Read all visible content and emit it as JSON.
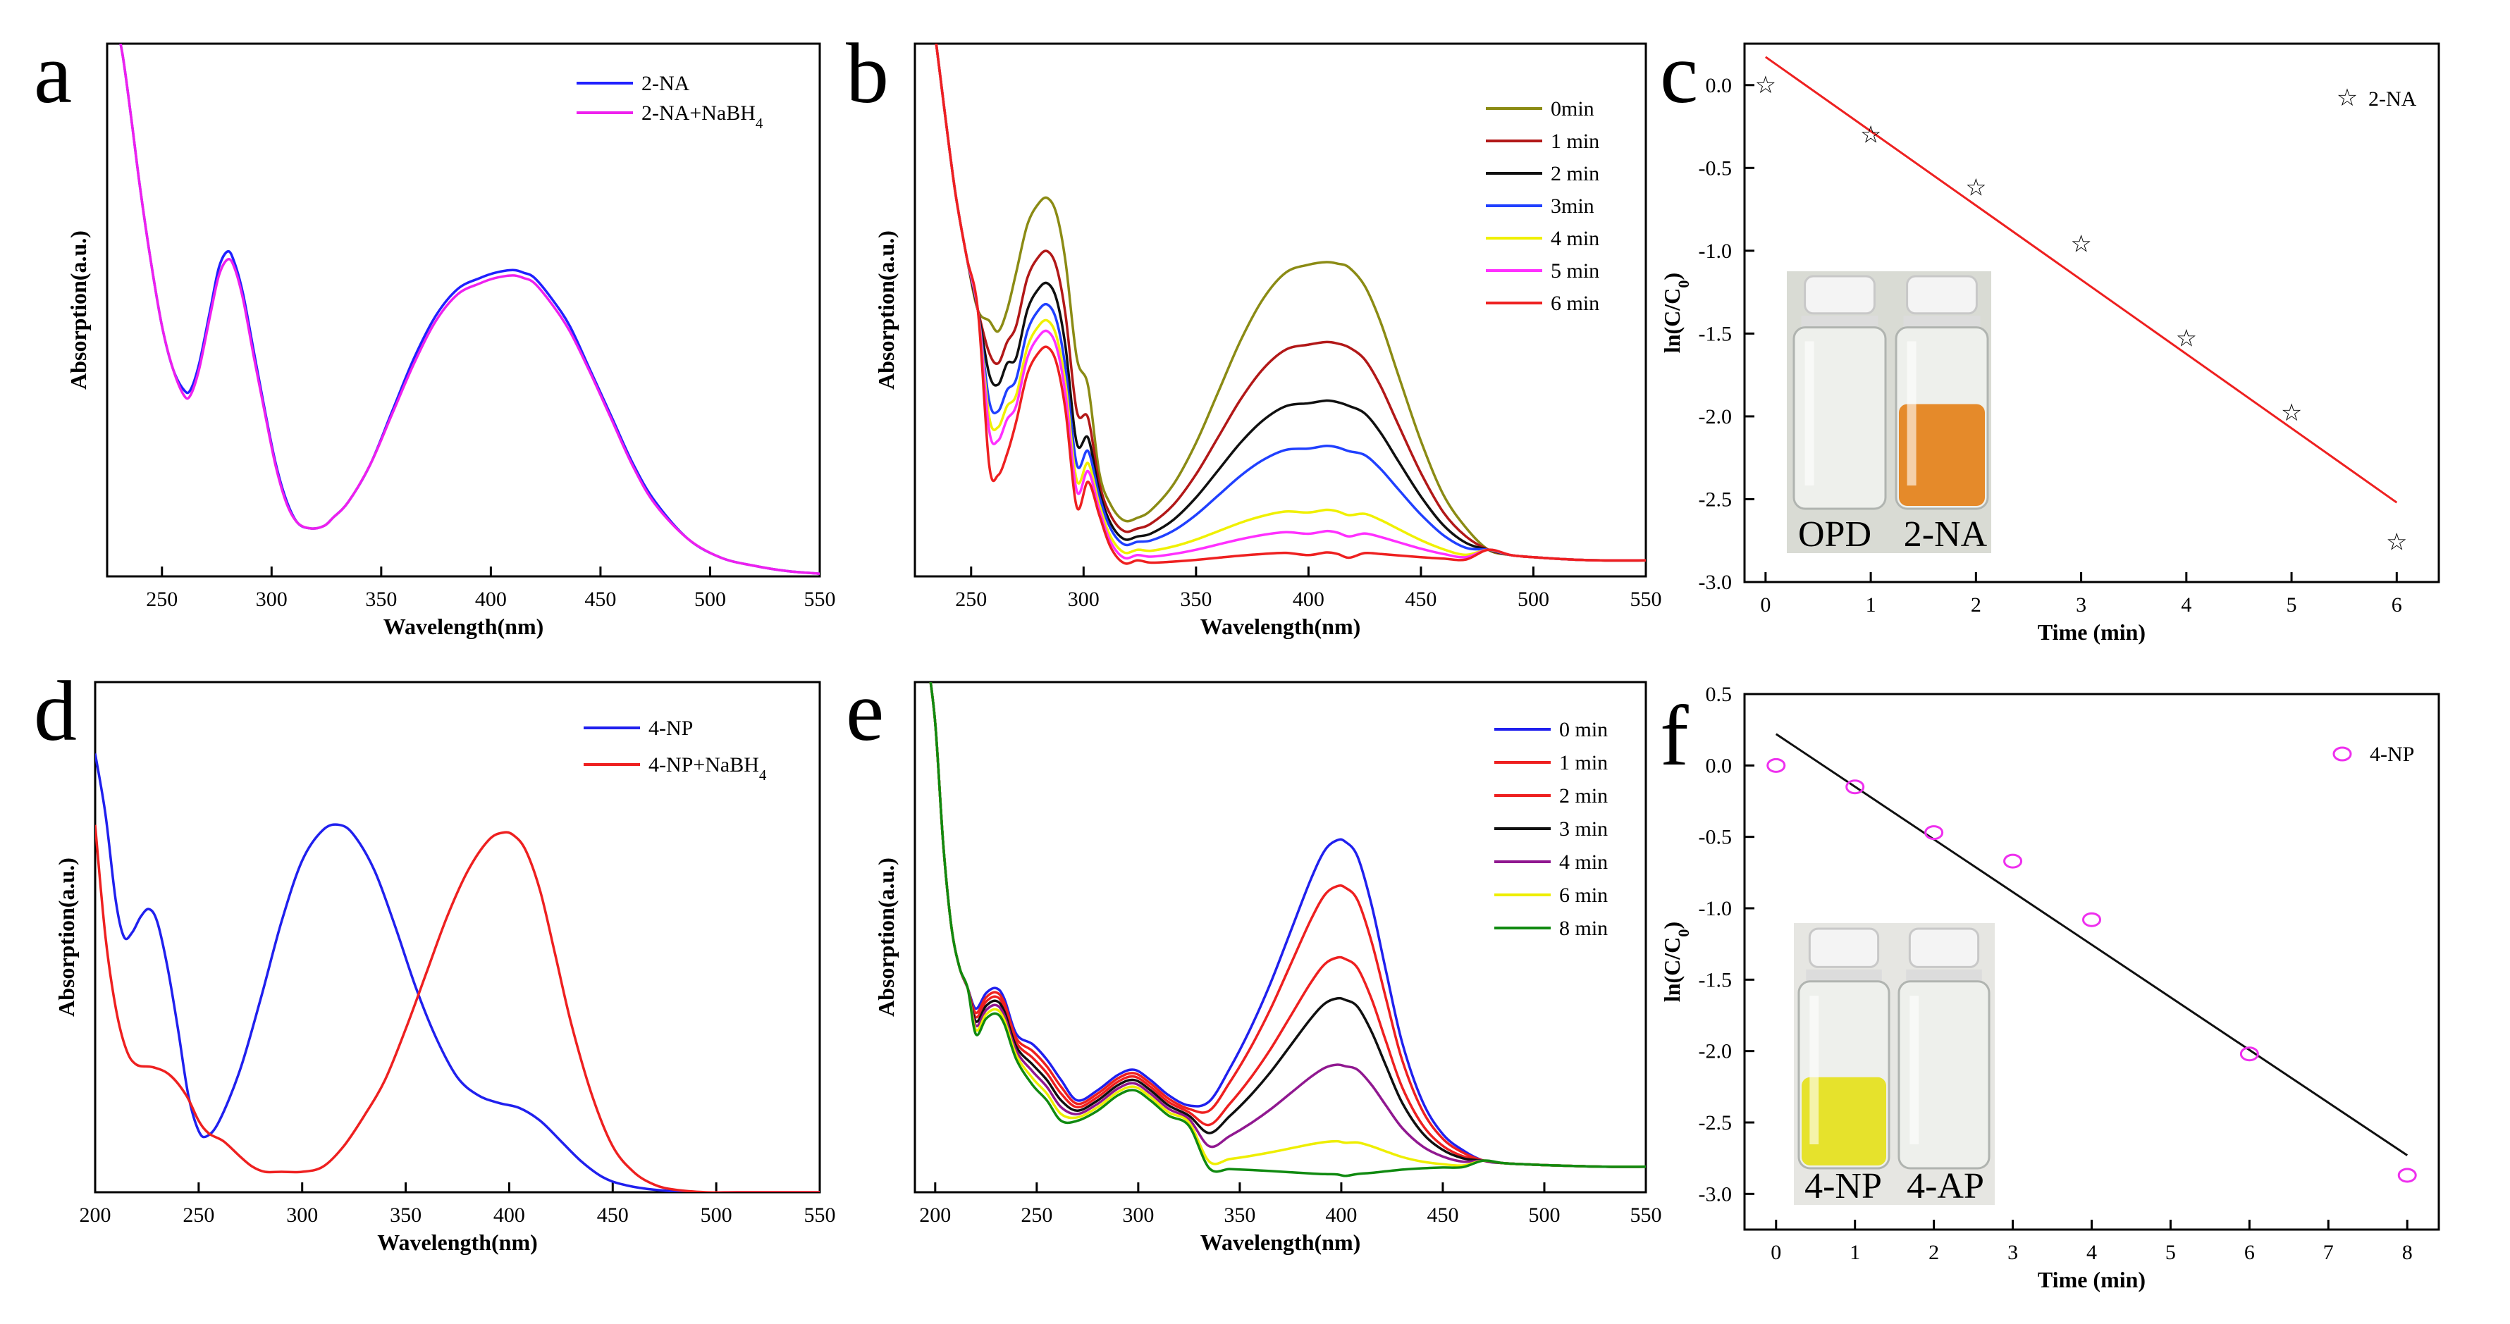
{
  "figure": {
    "panels_order": [
      "a",
      "b",
      "c",
      "d",
      "e",
      "f"
    ]
  },
  "chart_data": [
    {
      "panel": "a",
      "type": "line",
      "xlabel": "Wavelength(nm)",
      "ylabel": "Absorption(a.u.)",
      "xlim": [
        225,
        550
      ],
      "ylim": [
        0,
        1.0
      ],
      "xticks": [
        250,
        300,
        350,
        400,
        450,
        500,
        550
      ],
      "legend_position": "top-right",
      "series": [
        {
          "name": "2-NA",
          "color": "#2020ff",
          "x": [
            228,
            232,
            236,
            240,
            245,
            250,
            255,
            260,
            263,
            267,
            272,
            276,
            280,
            283,
            287,
            292,
            297,
            302,
            307,
            312,
            318,
            324,
            328,
            335,
            345,
            355,
            365,
            375,
            385,
            395,
            402,
            410,
            415,
            420,
            428,
            436,
            445,
            455,
            465,
            475,
            490,
            505,
            520,
            535,
            550
          ],
          "y": [
            1.06,
            0.98,
            0.86,
            0.73,
            0.59,
            0.47,
            0.39,
            0.35,
            0.35,
            0.4,
            0.5,
            0.58,
            0.61,
            0.59,
            0.53,
            0.42,
            0.31,
            0.21,
            0.14,
            0.1,
            0.09,
            0.095,
            0.11,
            0.14,
            0.21,
            0.31,
            0.41,
            0.49,
            0.54,
            0.56,
            0.57,
            0.575,
            0.57,
            0.56,
            0.52,
            0.47,
            0.39,
            0.3,
            0.21,
            0.14,
            0.07,
            0.035,
            0.02,
            0.01,
            0.005
          ]
        },
        {
          "name": "2-NA+NaBH4",
          "color": "#ee20ee",
          "x": [
            228,
            232,
            236,
            240,
            245,
            250,
            255,
            260,
            263,
            267,
            272,
            276,
            280,
            283,
            287,
            292,
            297,
            302,
            307,
            312,
            318,
            324,
            328,
            335,
            345,
            355,
            365,
            375,
            385,
            395,
            402,
            410,
            415,
            420,
            428,
            436,
            445,
            455,
            465,
            475,
            490,
            505,
            520,
            535,
            550
          ],
          "y": [
            1.06,
            0.98,
            0.86,
            0.73,
            0.59,
            0.47,
            0.39,
            0.34,
            0.34,
            0.39,
            0.49,
            0.565,
            0.595,
            0.58,
            0.52,
            0.41,
            0.305,
            0.205,
            0.135,
            0.1,
            0.09,
            0.095,
            0.11,
            0.14,
            0.21,
            0.305,
            0.4,
            0.48,
            0.53,
            0.55,
            0.56,
            0.565,
            0.56,
            0.55,
            0.51,
            0.46,
            0.385,
            0.295,
            0.205,
            0.135,
            0.07,
            0.035,
            0.02,
            0.01,
            0.005
          ]
        }
      ]
    },
    {
      "panel": "b",
      "type": "line",
      "xlabel": "Wavelength(nm)",
      "ylabel": "Absorption(a.u.)",
      "xlim": [
        225,
        550
      ],
      "ylim": [
        0,
        1.0
      ],
      "xticks": [
        250,
        300,
        350,
        400,
        450,
        500,
        550
      ],
      "legend_position": "top-right",
      "series": [
        {
          "name": "0min",
          "color": "#8b8b14",
          "peak1": 0.71,
          "valley1": 0.46,
          "valley2": 0.105,
          "peak2": 0.59
        },
        {
          "name": "1 min",
          "color": "#b21818",
          "peak1": 0.61,
          "valley1": 0.4,
          "valley2": 0.085,
          "peak2": 0.44
        },
        {
          "name": "2 min",
          "color": "#101010",
          "peak1": 0.55,
          "valley1": 0.36,
          "valley2": 0.07,
          "peak2": 0.33
        },
        {
          "name": "3min",
          "color": "#2040ff",
          "peak1": 0.51,
          "valley1": 0.31,
          "valley2": 0.06,
          "peak2": 0.245
        },
        {
          "name": "4 min",
          "color": "#f0f000",
          "peak1": 0.48,
          "valley1": 0.28,
          "valley2": 0.045,
          "peak2": 0.125
        },
        {
          "name": "5 min",
          "color": "#ff30ff",
          "peak1": 0.46,
          "valley1": 0.255,
          "valley2": 0.035,
          "peak2": 0.085
        },
        {
          "name": "6 min",
          "color": "#ee2020",
          "peak1": 0.43,
          "valley1": 0.19,
          "valley2": 0.025,
          "peak2": 0.045
        }
      ]
    },
    {
      "panel": "c",
      "type": "scatter",
      "xlabel": "Time (min)",
      "ylabel": "ln(C/C",
      "ylabel_sub": "0",
      "ylabel_tail": ")",
      "xlim": [
        -0.2,
        6.4
      ],
      "ylim": [
        -3.0,
        0.25
      ],
      "xticks": [
        0,
        1,
        2,
        3,
        4,
        5,
        6
      ],
      "yticks": [
        0.0,
        -0.5,
        -1.0,
        -1.5,
        -2.0,
        -2.5,
        -3.0
      ],
      "ytick_labels": [
        "0.0",
        "-0.5",
        "-1.0",
        "-1.5",
        "-2.0",
        "-2.5",
        "-3.0"
      ],
      "marker_color": "#8a2f8a",
      "line_color": "#ee2020",
      "fit": {
        "x0": 0,
        "y0": 0.17,
        "x1": 6,
        "y1": -2.52
      },
      "series": [
        {
          "name": "2-NA",
          "x": [
            0,
            1,
            2,
            3,
            4,
            5,
            6
          ],
          "y": [
            0.0,
            -0.3,
            -0.62,
            -0.96,
            -1.53,
            -1.98,
            -2.76
          ]
        }
      ],
      "legend_position": "top-right",
      "inset_labels": [
        "OPD",
        "2-NA"
      ]
    },
    {
      "panel": "d",
      "type": "line",
      "xlabel": "Wavelength(nm)",
      "ylabel": "Absorption(a.u.)",
      "xlim": [
        200,
        550
      ],
      "ylim": [
        0,
        1.0
      ],
      "xticks": [
        200,
        250,
        300,
        350,
        400,
        450,
        500,
        550
      ],
      "legend_position": "top-right",
      "series": [
        {
          "name": "4-NP",
          "color": "#2020ee",
          "x": [
            200,
            205,
            210,
            214,
            218,
            222,
            226,
            230,
            235,
            240,
            245,
            250,
            254,
            260,
            270,
            280,
            290,
            300,
            310,
            318,
            325,
            335,
            345,
            355,
            365,
            375,
            385,
            395,
            405,
            415,
            425,
            435,
            445,
            455,
            470,
            490,
            510,
            530,
            550
          ],
          "y": [
            0.86,
            0.74,
            0.57,
            0.5,
            0.51,
            0.54,
            0.555,
            0.53,
            0.44,
            0.32,
            0.19,
            0.12,
            0.11,
            0.14,
            0.24,
            0.38,
            0.53,
            0.65,
            0.71,
            0.72,
            0.7,
            0.63,
            0.52,
            0.4,
            0.3,
            0.225,
            0.19,
            0.175,
            0.165,
            0.14,
            0.1,
            0.06,
            0.03,
            0.015,
            0.005,
            0.0,
            0.0,
            0.0,
            0.0
          ]
        },
        {
          "name": "4-NP+NaBH4",
          "color": "#ee2020",
          "x": [
            200,
            205,
            210,
            215,
            220,
            228,
            236,
            244,
            250,
            255,
            262,
            270,
            276,
            282,
            290,
            300,
            310,
            320,
            330,
            340,
            350,
            360,
            370,
            380,
            390,
            397,
            402,
            408,
            415,
            422,
            430,
            440,
            450,
            460,
            470,
            480,
            495,
            510,
            530,
            550
          ],
          "y": [
            0.72,
            0.5,
            0.36,
            0.28,
            0.25,
            0.245,
            0.23,
            0.19,
            0.14,
            0.115,
            0.1,
            0.07,
            0.05,
            0.04,
            0.04,
            0.04,
            0.05,
            0.09,
            0.15,
            0.22,
            0.32,
            0.43,
            0.54,
            0.63,
            0.69,
            0.705,
            0.7,
            0.67,
            0.59,
            0.47,
            0.33,
            0.19,
            0.09,
            0.04,
            0.015,
            0.005,
            0.0,
            0.0,
            0.0,
            0.0
          ]
        }
      ]
    },
    {
      "panel": "e",
      "type": "line",
      "xlabel": "Wavelength(nm)",
      "ylabel": "Absorption(a.u.)",
      "xlim": [
        190,
        550
      ],
      "ylim": [
        0,
        1.0
      ],
      "xticks": [
        200,
        250,
        300,
        350,
        400,
        450,
        500,
        550
      ],
      "xtick_labels": [
        "200",
        "250",
        "300",
        "350",
        "400",
        "450",
        "500",
        "550"
      ],
      "legend_position": "top-right",
      "series": [
        {
          "name": "0 min",
          "color": "#2020ee",
          "peak400": 0.69
        },
        {
          "name": "1 min",
          "color": "#ee2020",
          "peak400": 0.6
        },
        {
          "name": "2 min",
          "color": "#ee2020",
          "peak400": 0.46
        },
        {
          "name": "3 min",
          "color": "#101010",
          "peak400": 0.38
        },
        {
          "name": "4 min",
          "color": "#901890",
          "peak400": 0.25
        },
        {
          "name": "6 min",
          "color": "#eeee00",
          "peak400": 0.1
        },
        {
          "name": "8 min",
          "color": "#108a10",
          "peak400": 0.035
        }
      ]
    },
    {
      "panel": "f",
      "type": "scatter",
      "xlabel": "Time (min)",
      "ylabel": "ln(C/C",
      "ylabel_sub": "0",
      "ylabel_tail": ")",
      "xlim": [
        -0.4,
        8.4
      ],
      "ylim": [
        -3.25,
        0.5
      ],
      "xticks": [
        0,
        1,
        2,
        3,
        4,
        5,
        6,
        7,
        8
      ],
      "yticks": [
        0.5,
        0.0,
        -0.5,
        -1.0,
        -1.5,
        -2.0,
        -2.5,
        -3.0
      ],
      "ytick_labels": [
        "0.5",
        "0.0",
        "-0.5",
        "-1.0",
        "-1.5",
        "-2.0",
        "-2.5",
        "-3.0"
      ],
      "marker_color": "#ee30ee",
      "line_color": "#101010",
      "fit": {
        "x0": 0,
        "y0": 0.22,
        "x1": 8,
        "y1": -2.73
      },
      "series": [
        {
          "name": "4-NP",
          "x": [
            0,
            1,
            2,
            3,
            4,
            6,
            8
          ],
          "y": [
            0.0,
            -0.15,
            -0.47,
            -0.67,
            -1.08,
            -2.02,
            -2.87
          ]
        }
      ],
      "legend_position": "top-right",
      "inset_labels": [
        "4-NP",
        "4-AP"
      ]
    }
  ],
  "legend_labels": {
    "a": [
      {
        "main": "2-NA",
        "sub": ""
      },
      {
        "main": "2-NA+NaBH",
        "sub": "4"
      }
    ],
    "d": [
      {
        "main": "4-NP",
        "sub": ""
      },
      {
        "main": "4-NP+NaBH",
        "sub": "4"
      }
    ]
  },
  "colors": {
    "axes": "#000000",
    "background": "#ffffff",
    "vial_yellow": "#e6e22c",
    "vial_orange": "#e58a2a"
  }
}
